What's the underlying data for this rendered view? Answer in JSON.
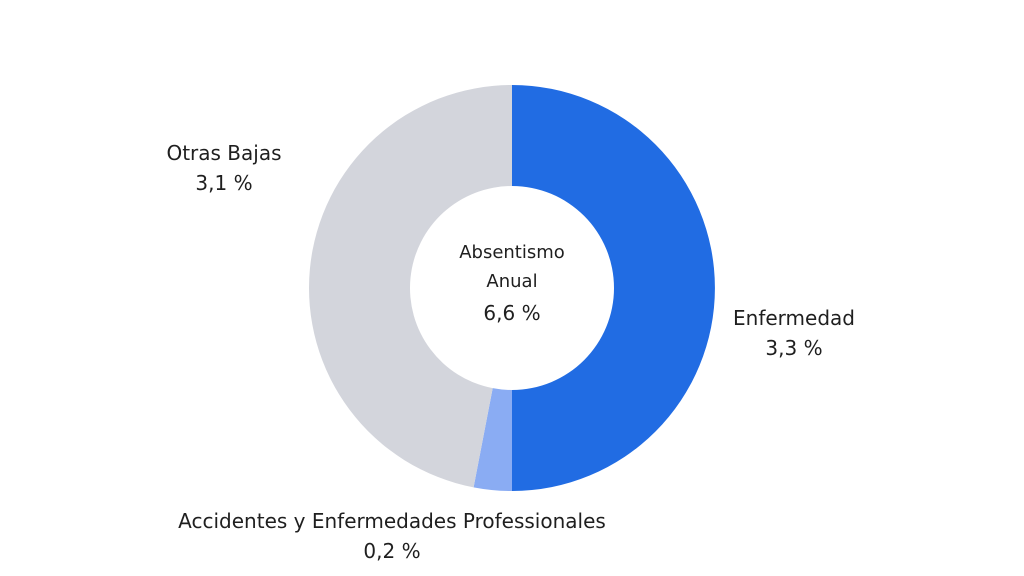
{
  "chart_data": {
    "type": "pie",
    "donut": true,
    "center_label": {
      "line1": "Absentismo",
      "line2": "Anual",
      "value": "6,6 %"
    },
    "slices": [
      {
        "label": "Enfermedad",
        "value": 3.3,
        "value_label": "3,3 %",
        "color": "#216ce3"
      },
      {
        "label": "Accidentes y Enfermedades Professionales",
        "value": 0.2,
        "value_label": "0,2 %",
        "color": "#8aacf3"
      },
      {
        "label": "Otras Bajas",
        "value": 3.1,
        "value_label": "3,1 %",
        "color": "#d3d5dc"
      }
    ]
  }
}
